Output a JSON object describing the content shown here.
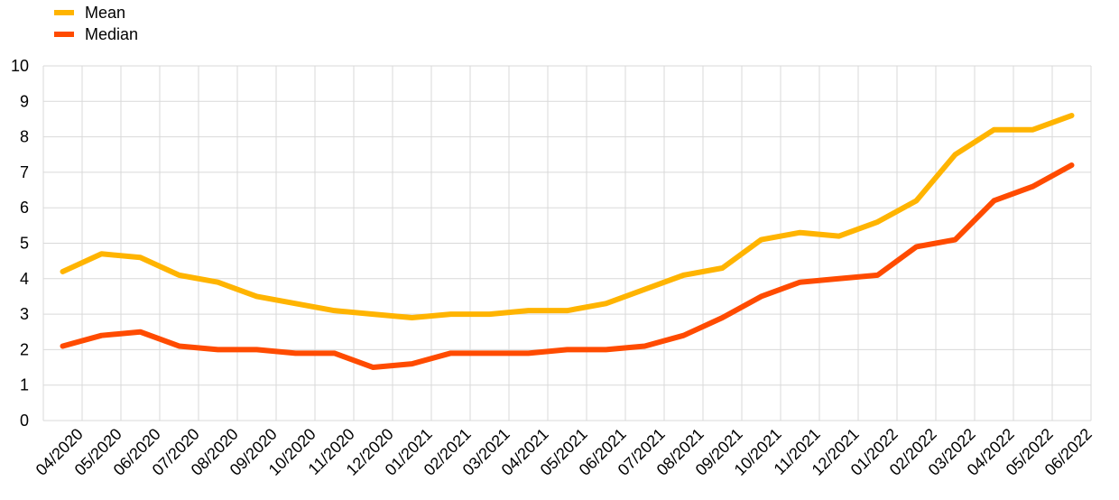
{
  "chart_data": {
    "type": "line",
    "title": "",
    "xlabel": "",
    "ylabel": "",
    "ylim": [
      0,
      10
    ],
    "yticks": [
      "0",
      "1",
      "2",
      "3",
      "4",
      "5",
      "6",
      "7",
      "8",
      "9",
      "10"
    ],
    "legend_position": "top-left",
    "grid": true,
    "categories": [
      "04/2020",
      "05/2020",
      "06/2020",
      "07/2020",
      "08/2020",
      "09/2020",
      "10/2020",
      "11/2020",
      "12/2020",
      "01/2021",
      "02/2021",
      "03/2021",
      "04/2021",
      "05/2021",
      "06/2021",
      "07/2021",
      "08/2021",
      "09/2021",
      "10/2021",
      "11/2021",
      "12/2021",
      "01/2022",
      "02/2022",
      "03/2022",
      "04/2022",
      "05/2022",
      "06/2022"
    ],
    "series": [
      {
        "name": "Mean",
        "color": "#FFB400",
        "values": [
          4.2,
          4.7,
          4.6,
          4.1,
          3.9,
          3.5,
          3.3,
          3.1,
          3.0,
          2.9,
          3.0,
          3.0,
          3.1,
          3.1,
          3.3,
          3.7,
          4.1,
          4.3,
          5.1,
          5.3,
          5.2,
          5.6,
          6.2,
          7.5,
          8.2,
          8.2,
          8.6
        ]
      },
      {
        "name": "Median",
        "color": "#FF4B00",
        "values": [
          2.1,
          2.4,
          2.5,
          2.1,
          2.0,
          2.0,
          1.9,
          1.9,
          1.5,
          1.6,
          1.9,
          1.9,
          1.9,
          2.0,
          2.0,
          2.1,
          2.4,
          2.9,
          3.5,
          3.9,
          4.0,
          4.1,
          4.9,
          5.1,
          6.2,
          6.6,
          7.2
        ]
      }
    ]
  }
}
